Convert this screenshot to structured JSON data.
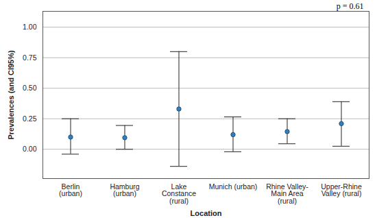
{
  "chart_data": {
    "type": "scatter",
    "annotation": "p = 0.61",
    "x_label": "Location",
    "y_label": "Prevalences (and CI95%)",
    "categories": [
      "Berlin\n(urban)",
      "Hamburg\n(urban)",
      "Lake\nConstance\n(rural)",
      "Munich (urban)",
      "Rhine Valley-\nMain Area\n(rural)",
      "Upper-Rhine\nValley (rural)"
    ],
    "values": [
      0.1,
      0.095,
      0.33,
      0.12,
      0.145,
      0.21
    ],
    "ci_lower": [
      -0.04,
      0.0,
      -0.14,
      -0.02,
      0.045,
      0.025
    ],
    "ci_upper": [
      0.25,
      0.195,
      0.8,
      0.265,
      0.25,
      0.39
    ],
    "color": "#2f7fc1",
    "marker": "circle",
    "ylim": [
      -0.24,
      1.13
    ],
    "yticks": [
      {
        "value": 0,
        "label": "0.00"
      },
      {
        "value": 0.25,
        "label": "0.25"
      },
      {
        "value": 0.5,
        "label": "0.50"
      },
      {
        "value": 0.75,
        "label": "0.75"
      },
      {
        "value": 1,
        "label": "1.00"
      }
    ],
    "grid": true
  }
}
